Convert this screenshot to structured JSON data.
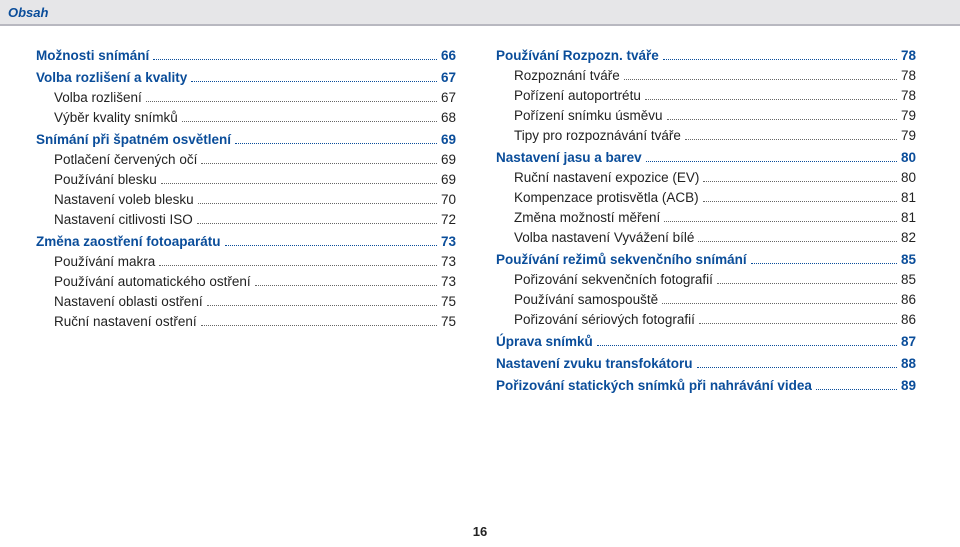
{
  "header": {
    "title": "Obsah"
  },
  "page_number": "16",
  "columns": {
    "left": [
      {
        "label": "Možnosti snímání",
        "page": "66",
        "level": "major"
      },
      {
        "label": "Volba rozlišení a kvality",
        "page": "67",
        "level": "major"
      },
      {
        "label": "Volba rozlišení",
        "page": "67",
        "level": "indent1"
      },
      {
        "label": "Výběr kvality snímků",
        "page": "68",
        "level": "indent1"
      },
      {
        "label": "Snímání při špatném osvětlení",
        "page": "69",
        "level": "major"
      },
      {
        "label": "Potlačení červených očí",
        "page": "69",
        "level": "indent1"
      },
      {
        "label": "Používání blesku",
        "page": "69",
        "level": "indent1"
      },
      {
        "label": "Nastavení voleb blesku",
        "page": "70",
        "level": "indent1"
      },
      {
        "label": "Nastavení citlivosti ISO",
        "page": "72",
        "level": "indent1"
      },
      {
        "label": "Změna zaostření fotoaparátu",
        "page": "73",
        "level": "major"
      },
      {
        "label": "Používání makra",
        "page": "73",
        "level": "indent1"
      },
      {
        "label": "Používání automatického ostření",
        "page": "73",
        "level": "indent1"
      },
      {
        "label": "Nastavení oblasti ostření",
        "page": "75",
        "level": "indent1"
      },
      {
        "label": "Ruční nastavení ostření",
        "page": "75",
        "level": "indent1"
      }
    ],
    "right": [
      {
        "label": "Používání Rozpozn. tváře",
        "page": "78",
        "level": "major"
      },
      {
        "label": "Rozpoznání tváře",
        "page": "78",
        "level": "indent1"
      },
      {
        "label": "Pořízení autoportrétu",
        "page": "78",
        "level": "indent1"
      },
      {
        "label": "Pořízení snímku úsměvu",
        "page": "79",
        "level": "indent1"
      },
      {
        "label": "Tipy pro rozpoznávání tváře",
        "page": "79",
        "level": "indent1"
      },
      {
        "label": "Nastavení jasu a barev",
        "page": "80",
        "level": "major"
      },
      {
        "label": "Ruční nastavení expozice (EV)",
        "page": "80",
        "level": "indent1"
      },
      {
        "label": "Kompenzace protisvětla (ACB)",
        "page": "81",
        "level": "indent1"
      },
      {
        "label": "Změna možností měření",
        "page": "81",
        "level": "indent1"
      },
      {
        "label": "Volba nastavení Vyvážení bílé",
        "page": "82",
        "level": "indent1"
      },
      {
        "label": "Používání režimů sekvenčního snímání",
        "page": "85",
        "level": "major"
      },
      {
        "label": "Pořizování sekvenčních fotografií",
        "page": "85",
        "level": "indent1"
      },
      {
        "label": "Používání samospouště",
        "page": "86",
        "level": "indent1"
      },
      {
        "label": "Pořizování sériových fotografií",
        "page": "86",
        "level": "indent1"
      },
      {
        "label": "Úprava snímků",
        "page": "87",
        "level": "major"
      },
      {
        "label": "Nastavení zvuku transfokátoru",
        "page": "88",
        "level": "major"
      },
      {
        "label": "Pořizování statických snímků při nahrávání videa",
        "page": "89",
        "level": "major"
      }
    ]
  }
}
